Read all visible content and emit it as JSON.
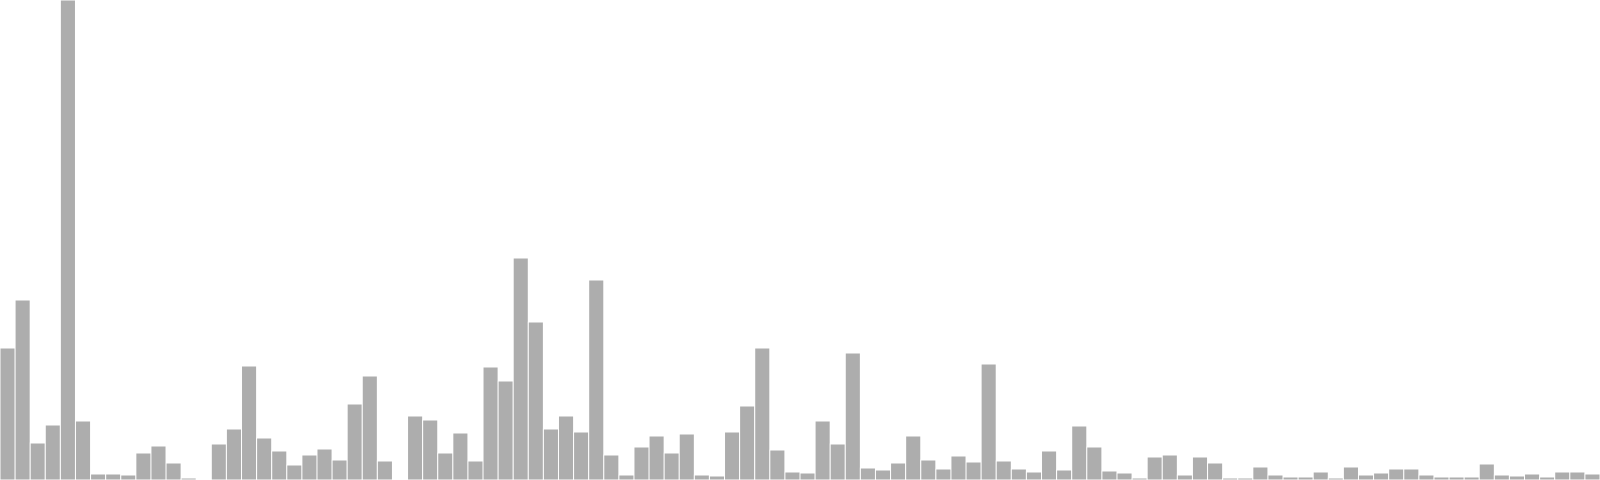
{
  "chart_data": {
    "type": "bar",
    "title": "",
    "xlabel": "",
    "ylabel": "",
    "bar_color": "#adadad",
    "axes_visible": false,
    "grid": false,
    "legend": "none",
    "ylim": [
      0,
      480
    ],
    "x": [
      0,
      1,
      2,
      3,
      4,
      5,
      6,
      7,
      8,
      9,
      10,
      11,
      12,
      13,
      14,
      15,
      16,
      17,
      18,
      19,
      20,
      21,
      22,
      23,
      24,
      25,
      26,
      27,
      28,
      29,
      30,
      31,
      32,
      33,
      34,
      35,
      36,
      37,
      38,
      39,
      40,
      41,
      42,
      43,
      44,
      45,
      46,
      47,
      48,
      49,
      50,
      51,
      52,
      53,
      54,
      55,
      56,
      57,
      58,
      59,
      60,
      61,
      62,
      63,
      64,
      65,
      66,
      67,
      68,
      69,
      70,
      71,
      72,
      73,
      74,
      75,
      76,
      77,
      78,
      79,
      80,
      81,
      82,
      83,
      84,
      85,
      86,
      87,
      88,
      89,
      90,
      91,
      92,
      93,
      94,
      95,
      96,
      97,
      98,
      99,
      100,
      101,
      102,
      103,
      104,
      105
    ],
    "values": [
      132,
      180,
      37,
      55,
      480,
      59,
      6,
      6,
      5,
      27,
      34,
      17,
      2,
      0,
      36,
      51,
      114,
      42,
      29,
      15,
      25,
      31,
      20,
      76,
      104,
      19,
      0,
      64,
      60,
      27,
      47,
      19,
      113,
      99,
      222,
      158,
      51,
      64,
      48,
      200,
      25,
      5,
      33,
      44,
      27,
      46,
      5,
      4,
      48,
      74,
      132,
      30,
      8,
      7,
      59,
      36,
      127,
      12,
      10,
      17,
      44,
      20,
      11,
      24,
      18,
      116,
      19,
      11,
      8,
      29,
      10,
      54,
      33,
      9,
      7,
      2,
      23,
      25,
      5,
      23,
      17,
      2,
      2,
      13,
      5,
      3,
      3,
      8,
      2,
      13,
      5,
      7,
      11,
      11,
      5,
      3,
      3,
      3,
      16,
      5,
      4,
      6,
      3,
      8,
      8,
      6
    ]
  }
}
